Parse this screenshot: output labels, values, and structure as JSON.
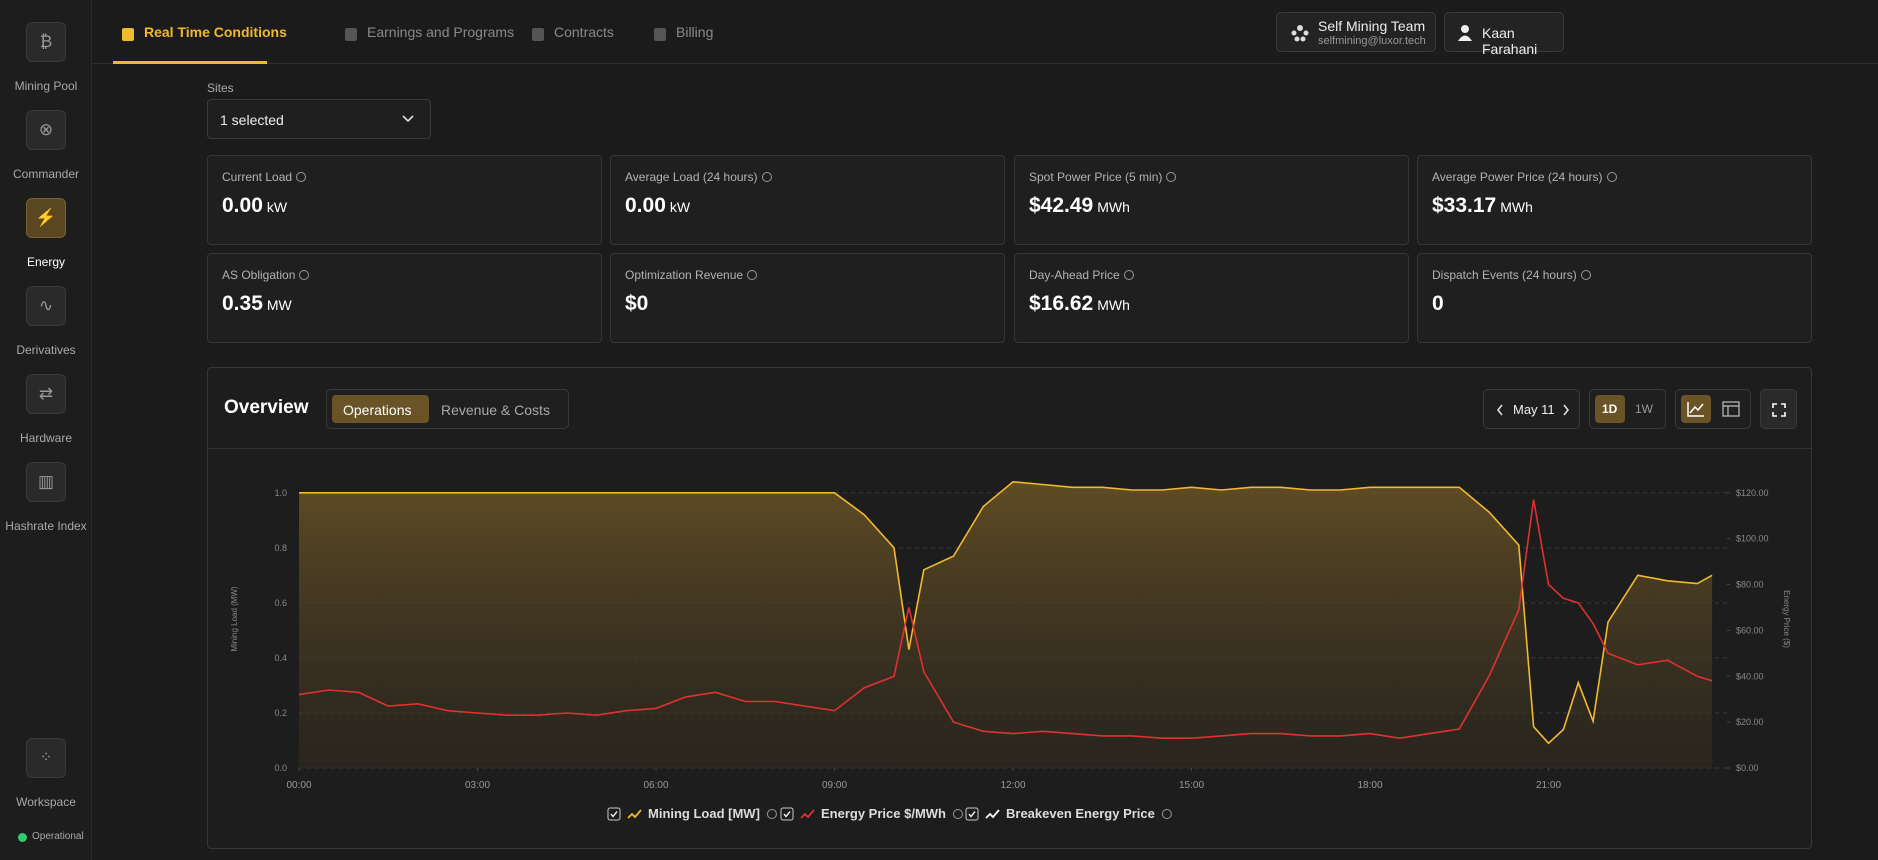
{
  "sidebar": {
    "items": [
      {
        "label": "Mining Pool"
      },
      {
        "label": "Commander"
      },
      {
        "label": "Energy"
      },
      {
        "label": "Derivatives"
      },
      {
        "label": "Hardware"
      },
      {
        "label": "Hashrate Index"
      }
    ],
    "workspace": "Workspace",
    "status": "Operational"
  },
  "nav": {
    "tabs": [
      "Real Time Conditions",
      "Earnings and Programs",
      "Contracts",
      "Billing"
    ],
    "team": "Self Mining Team",
    "email": "selfmining@luxor.tech",
    "user": "Kaan Farahani"
  },
  "sites": {
    "label": "Sites",
    "value": "1 selected"
  },
  "metrics": [
    {
      "label": "Current Load",
      "value": "0.00",
      "unit": "kW"
    },
    {
      "label": "Average Load (24 hours)",
      "value": "0.00",
      "unit": "kW"
    },
    {
      "label": "Spot Power Price (5 min)",
      "value": "$42.49",
      "unit": "MWh"
    },
    {
      "label": "Average Power Price (24 hours)",
      "value": "$33.17",
      "unit": "MWh"
    },
    {
      "label": "AS Obligation",
      "value": "0.35",
      "unit": "MW"
    },
    {
      "label": "Optimization Revenue",
      "value": "$0"
    },
    {
      "label": "Day-Ahead Price",
      "value": "$16.62",
      "unit": "MWh"
    },
    {
      "label": "Dispatch Events (24 hours)",
      "value": "0"
    }
  ],
  "overview": {
    "title": "Overview",
    "tabs": [
      "Operations",
      "Revenue & Costs"
    ],
    "date": "May 11",
    "ranges": [
      "1D",
      "1W"
    ]
  },
  "chart_data": {
    "type": "line",
    "ylabel": "Mining Load (MW)",
    "y2label": "Energy Price ($)",
    "grid": true,
    "x": [
      0,
      0.5,
      1,
      1.5,
      2,
      2.5,
      3,
      3.5,
      4,
      4.5,
      5,
      5.5,
      6,
      6.5,
      7,
      7.5,
      8,
      8.5,
      9,
      9.5,
      10,
      10.25,
      10.5,
      11,
      11.5,
      12,
      12.5,
      13,
      13.5,
      14,
      14.5,
      15,
      15.5,
      16,
      16.5,
      17,
      17.5,
      18,
      18.5,
      19,
      19.5,
      20,
      20.5,
      20.75,
      21,
      21.25,
      21.5,
      21.75,
      22,
      22.5,
      23,
      23.5,
      23.75
    ],
    "xlim": [
      0,
      24
    ],
    "xticks": [
      {
        "value": 0,
        "label": "00:00"
      },
      {
        "value": 3,
        "label": "03:00"
      },
      {
        "value": 6,
        "label": "06:00"
      },
      {
        "value": 9,
        "label": "09:00"
      },
      {
        "value": 12,
        "label": "12:00"
      },
      {
        "value": 15,
        "label": "15:00"
      },
      {
        "value": 18,
        "label": "18:00"
      },
      {
        "value": 21,
        "label": "21:00"
      }
    ],
    "ylim": [
      0,
      1.05
    ],
    "yticks": [
      {
        "value": 0,
        "label": "0.0"
      },
      {
        "value": 0.2,
        "label": "0.2"
      },
      {
        "value": 0.4,
        "label": "0.4"
      },
      {
        "value": 0.6,
        "label": "0.6"
      },
      {
        "value": 0.8,
        "label": "0.8"
      },
      {
        "value": 1,
        "label": "1.0"
      }
    ],
    "y2lim": [
      0,
      126
    ],
    "y2ticks": [
      {
        "value": 0,
        "label": "$0.00"
      },
      {
        "value": 20,
        "label": "$20.00"
      },
      {
        "value": 40,
        "label": "$40.00"
      },
      {
        "value": 60,
        "label": "$60.00"
      },
      {
        "value": 80,
        "label": "$80.00"
      },
      {
        "value": 100,
        "label": "$100.00"
      },
      {
        "value": 120,
        "label": "$120.00"
      }
    ],
    "series": [
      {
        "name": "Mining Load [MW]",
        "color": "#f0b92e",
        "area": true,
        "values": [
          1,
          1,
          1,
          1,
          1,
          1,
          1,
          1,
          1,
          1,
          1,
          1,
          1,
          1,
          1,
          1,
          1,
          1,
          1,
          0.92,
          0.8,
          0.43,
          0.72,
          0.77,
          0.95,
          1.04,
          1.03,
          1.02,
          1.02,
          1.01,
          1.01,
          1.02,
          1.01,
          1.02,
          1.02,
          1.01,
          1.01,
          1.02,
          1.02,
          1.02,
          1.02,
          0.93,
          0.81,
          0.15,
          0.09,
          0.14,
          0.31,
          0.17,
          0.53,
          0.7,
          0.68,
          0.67,
          0.7
        ]
      },
      {
        "name": "Energy Price $/MWh",
        "color": "#e03131",
        "axis": "y2",
        "values": [
          32,
          34,
          33,
          27,
          28,
          25,
          24,
          23,
          23,
          24,
          23,
          25,
          26,
          31,
          33,
          29,
          29,
          27,
          25,
          35,
          40,
          70,
          42,
          20,
          16,
          15,
          16,
          15,
          14,
          14,
          13,
          13,
          14,
          15,
          15,
          14,
          14,
          15,
          13,
          15,
          17,
          40,
          69,
          117,
          80,
          74,
          72,
          63,
          50,
          45,
          47,
          40,
          38
        ]
      },
      {
        "name": "Breakeven Energy Price",
        "color": "#ffffff",
        "axis": "y2",
        "values": [
          null,
          null,
          null,
          null,
          null,
          null,
          null,
          null,
          null,
          null,
          null,
          null,
          null,
          null,
          null,
          null,
          null,
          null,
          null,
          null,
          null,
          null,
          null,
          null,
          null,
          null,
          null,
          null,
          null,
          null,
          null,
          null,
          null,
          null,
          null,
          null,
          null,
          null,
          null,
          null,
          null,
          null,
          null,
          null,
          null,
          null,
          null,
          null,
          null,
          null,
          null,
          null,
          null
        ]
      }
    ]
  }
}
